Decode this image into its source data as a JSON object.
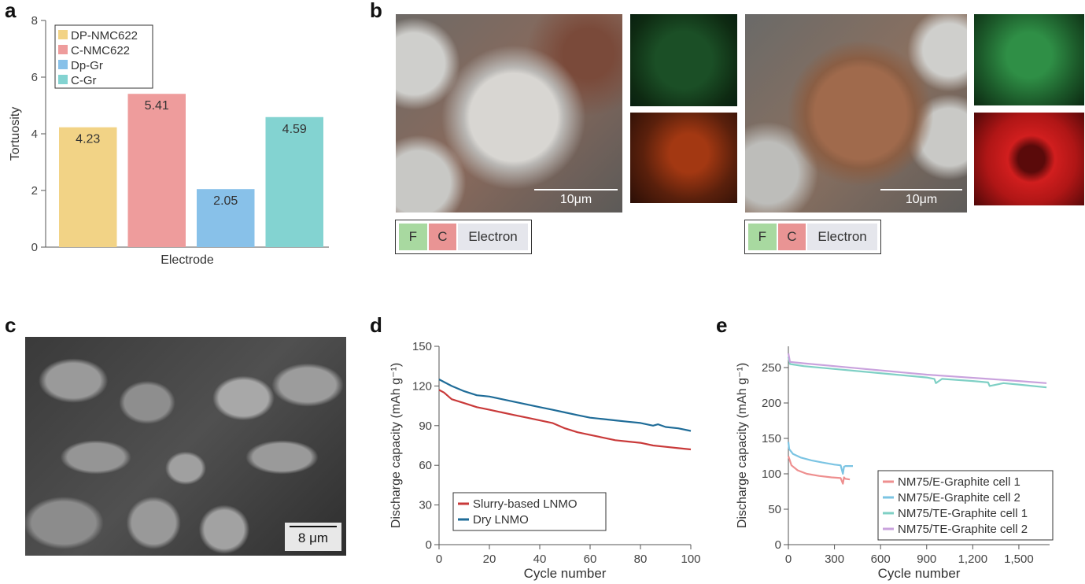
{
  "panels": {
    "a": "a",
    "b": "b",
    "c": "c",
    "d": "d",
    "e": "e"
  },
  "colors": {
    "dp_nmc": "#f2d386",
    "c_nmc": "#ee9c9c",
    "dp_gr": "#88c1e9",
    "c_gr": "#83d3d1",
    "slurry": "#c93a3a",
    "dry": "#1f6c98",
    "e_cell1": "#ee8f8f",
    "e_cell2": "#7bc4e3",
    "te_cell1": "#7fd0c5",
    "te_cell2": "#c9a2dd",
    "f_box": "#a8d9a0",
    "c_box": "#e99494",
    "electron_box": "#e5e6ec"
  },
  "chart_data": [
    {
      "id": "a",
      "type": "bar",
      "ylabel": "Tortuosity",
      "xlabel": "Electrode",
      "ylim": [
        0,
        8
      ],
      "yticks": [
        "0",
        "2",
        "4",
        "6",
        "8"
      ],
      "categories": [
        "DP-NMC622",
        "C-NMC622",
        "Dp-Gr",
        "C-Gr"
      ],
      "values": [
        4.23,
        5.41,
        2.05,
        4.59
      ],
      "value_labels": [
        "4.23",
        "5.41",
        "2.05",
        "4.59"
      ],
      "legend": [
        "DP-NMC622",
        "C-NMC622",
        "Dp-Gr",
        "C-Gr"
      ],
      "legend_position": "top-left"
    },
    {
      "id": "d",
      "type": "line",
      "ylabel": "Discharge capacity (mAh g⁻¹)",
      "xlabel": "Cycle number",
      "xlim": [
        0,
        100
      ],
      "ylim": [
        0,
        150
      ],
      "xticks": [
        "0",
        "20",
        "40",
        "60",
        "80",
        "100"
      ],
      "yticks": [
        "0",
        "30",
        "60",
        "90",
        "120",
        "150"
      ],
      "legend_position": "bottom-left",
      "series": [
        {
          "name": "Slurry-based LNMO",
          "x": [
            0,
            2,
            5,
            10,
            15,
            20,
            25,
            30,
            35,
            40,
            45,
            50,
            55,
            60,
            65,
            70,
            75,
            80,
            85,
            90,
            95,
            100
          ],
          "y": [
            117,
            115,
            110,
            107,
            104,
            102,
            100,
            98,
            96,
            94,
            92,
            88,
            85,
            83,
            81,
            79,
            78,
            77,
            75,
            74,
            73,
            72
          ]
        },
        {
          "name": "Dry LNMO",
          "x": [
            0,
            2,
            5,
            10,
            15,
            20,
            25,
            30,
            35,
            40,
            45,
            50,
            55,
            60,
            65,
            70,
            75,
            80,
            85,
            87,
            90,
            95,
            100
          ],
          "y": [
            125,
            123,
            120,
            116,
            113,
            112,
            110,
            108,
            106,
            104,
            102,
            100,
            98,
            96,
            95,
            94,
            93,
            92,
            90,
            91,
            89,
            88,
            86
          ]
        }
      ]
    },
    {
      "id": "e",
      "type": "line",
      "ylabel": "Discharge capacity (mAh g⁻¹)",
      "xlabel": "Cycle number",
      "xlim": [
        0,
        1700
      ],
      "ylim": [
        0,
        280
      ],
      "xticks": [
        "0",
        "300",
        "600",
        "900",
        "1,200",
        "1,500"
      ],
      "xtick_values": [
        0,
        300,
        600,
        900,
        1200,
        1500
      ],
      "yticks": [
        "0",
        "50",
        "100",
        "150",
        "200",
        "250"
      ],
      "legend_position": "bottom-right",
      "series": [
        {
          "name": "NM75/E-Graphite cell 1",
          "x": [
            0,
            20,
            60,
            120,
            200,
            280,
            340,
            355,
            362,
            370,
            400
          ],
          "y": [
            125,
            112,
            105,
            100,
            97,
            95,
            94,
            86,
            95,
            93,
            92
          ]
        },
        {
          "name": "NM75/E-Graphite cell 2",
          "x": [
            0,
            5,
            30,
            80,
            150,
            220,
            300,
            340,
            355,
            362,
            372,
            420
          ],
          "y": [
            145,
            135,
            128,
            123,
            119,
            116,
            113,
            112,
            100,
            110,
            111,
            111
          ]
        },
        {
          "name": "NM75/TE-Graphite cell 1",
          "x": [
            0,
            10,
            100,
            300,
            500,
            700,
            900,
            950,
            960,
            1000,
            1200,
            1300,
            1310,
            1400,
            1500,
            1680
          ],
          "y": [
            265,
            255,
            252,
            248,
            244,
            240,
            236,
            234,
            228,
            234,
            231,
            229,
            224,
            228,
            226,
            222
          ]
        },
        {
          "name": "NM75/TE-Graphite cell 2",
          "x": [
            0,
            10,
            100,
            300,
            500,
            700,
            900,
            1100,
            1300,
            1500,
            1680
          ],
          "y": [
            270,
            258,
            256,
            252,
            248,
            244,
            240,
            237,
            234,
            231,
            228
          ]
        }
      ]
    }
  ],
  "panel_b": {
    "scale_left": "10μm",
    "scale_right": "10μm",
    "legend_f": "F",
    "legend_c": "C",
    "legend_electron": "Electron"
  },
  "panel_c": {
    "scale": "8 μm"
  }
}
